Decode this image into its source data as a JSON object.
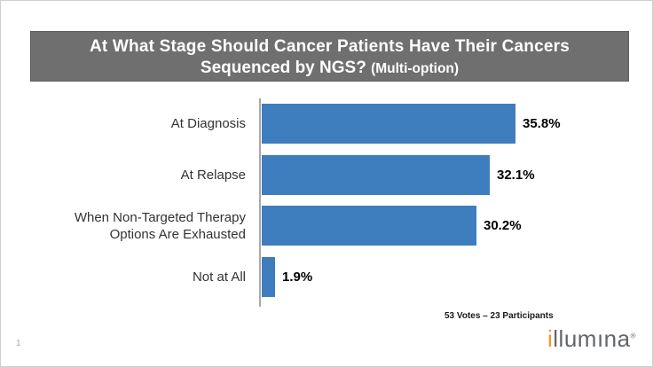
{
  "slide": {
    "page_number": "1",
    "title_line1": "At What Stage Should Cancer Patients Have Their Cancers",
    "title_line2_main": "Sequenced by NGS?",
    "title_line2_sub": "(Multi-option)",
    "footer_stats": "53 Votes – 23 Participants",
    "logo": {
      "i": "i",
      "rest": "llumına",
      "mark": "®"
    }
  },
  "chart_data": {
    "type": "bar",
    "orientation": "horizontal",
    "title": "At What Stage Should Cancer Patients Have Their Cancers Sequenced by NGS? (Multi-option)",
    "categories": [
      "At Diagnosis",
      "At Relapse",
      "When Non-Targeted Therapy Options Are Exhausted",
      "Not at All"
    ],
    "values": [
      35.8,
      32.1,
      30.2,
      1.9
    ],
    "data_labels": [
      "35.8%",
      "32.1%",
      "30.2%",
      "1.9%"
    ],
    "unit": "%",
    "xlim": [
      0,
      40
    ],
    "grid": false,
    "legend": false,
    "bar_color": "#3E7DBE",
    "axis_color": "#A8A8A8",
    "caption": "53 Votes – 23 Participants"
  },
  "colors": {
    "banner_bg": "#6F6F6F",
    "banner_border": "#5D5D5D",
    "title_text": "#FFFFFF",
    "category_text": "#333333",
    "value_text": "#000000",
    "logo_orange": "#F8981D",
    "logo_gray": "#63666A",
    "background": "#FFFFFF"
  }
}
